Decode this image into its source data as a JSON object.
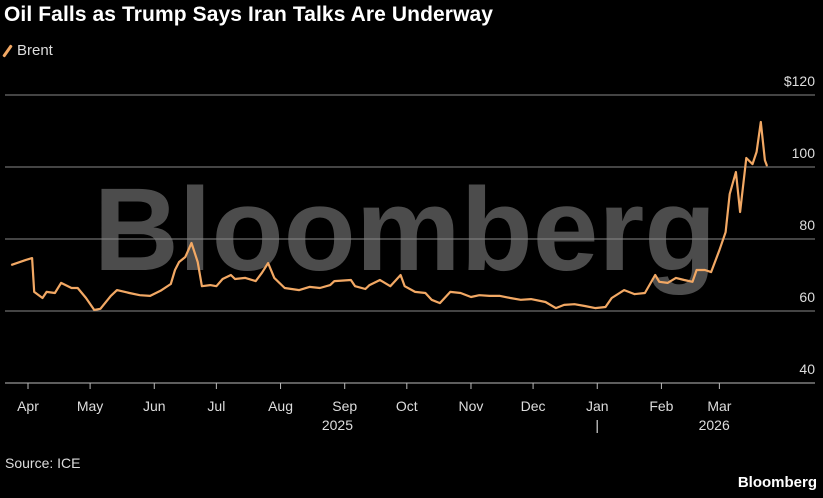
{
  "title": "Oil Falls as Trump Says Iran Talks Are Underway",
  "source": "Source: ICE",
  "brand": "Bloomberg",
  "watermark": "Bloomberg",
  "chart_data": {
    "type": "line",
    "title": "Oil Falls as Trump Says Iran Talks Are Underway",
    "xlabel": "",
    "ylabel": "",
    "x_unit": "days since 2025-04-01",
    "ylim": [
      40,
      120
    ],
    "y_ticks": [
      {
        "v": 120,
        "label": "$120"
      },
      {
        "v": 100,
        "label": "100"
      },
      {
        "v": 80,
        "label": "80"
      },
      {
        "v": 60,
        "label": "60"
      },
      {
        "v": 40,
        "label": "40"
      }
    ],
    "x_ticks": [
      {
        "d": 0,
        "label": "Apr"
      },
      {
        "d": 30,
        "label": "May"
      },
      {
        "d": 61,
        "label": "Jun"
      },
      {
        "d": 91,
        "label": "Jul"
      },
      {
        "d": 122,
        "label": "Aug"
      },
      {
        "d": 153,
        "label": "Sep"
      },
      {
        "d": 183,
        "label": "Oct"
      },
      {
        "d": 214,
        "label": "Nov"
      },
      {
        "d": 244,
        "label": "Dec"
      },
      {
        "d": 275,
        "label": "Jan"
      },
      {
        "d": 306,
        "label": "Feb"
      },
      {
        "d": 334,
        "label": "Mar"
      }
    ],
    "year_labels": [
      {
        "d": 135,
        "label": "2025"
      },
      {
        "d": 317,
        "label": "2026"
      }
    ],
    "year_divider": {
      "d": 275,
      "label": "|"
    },
    "grid": true,
    "legend_placement": "top-left",
    "series": [
      {
        "name": "Brent",
        "color": "#f2a864",
        "x": [
          -8,
          -1,
          2,
          3,
          7,
          9,
          13,
          16,
          21,
          24,
          28,
          32,
          35,
          40,
          43,
          49,
          54,
          59,
          64,
          69,
          71,
          73,
          76,
          79,
          82,
          84,
          88,
          91,
          94,
          98,
          100,
          105,
          110,
          113,
          116,
          119,
          124,
          131,
          136,
          141,
          146,
          148,
          156,
          158,
          163,
          165,
          170,
          175,
          180,
          182,
          187,
          192,
          195,
          199,
          204,
          209,
          214,
          218,
          223,
          228,
          233,
          238,
          243,
          250,
          255,
          259,
          264,
          269,
          274,
          279,
          282,
          288,
          293,
          298,
          303,
          305,
          309,
          313,
          317,
          321,
          323,
          327,
          330,
          334,
          337,
          339,
          342,
          344,
          347,
          350,
          352,
          354,
          356,
          357
        ],
        "values": [
          72.8,
          74.2,
          74.7,
          65.3,
          63.6,
          65.3,
          65.0,
          67.8,
          66.4,
          66.4,
          63.6,
          60.3,
          60.6,
          64.2,
          65.8,
          65.0,
          64.4,
          64.2,
          65.6,
          67.5,
          71.4,
          73.6,
          75.0,
          78.9,
          73.6,
          66.9,
          67.2,
          66.9,
          68.9,
          70.0,
          68.9,
          69.2,
          68.3,
          70.6,
          73.3,
          69.2,
          66.4,
          65.8,
          66.7,
          66.4,
          67.2,
          68.3,
          68.6,
          66.9,
          66.1,
          67.2,
          68.6,
          66.9,
          70.0,
          66.9,
          65.3,
          65.0,
          63.1,
          62.2,
          65.3,
          65.0,
          63.9,
          64.4,
          64.2,
          64.2,
          63.6,
          63.1,
          63.3,
          62.5,
          60.8,
          61.7,
          61.9,
          61.4,
          60.8,
          61.1,
          63.6,
          65.8,
          64.7,
          65.0,
          70.0,
          68.1,
          67.8,
          69.2,
          68.6,
          68.1,
          71.4,
          71.4,
          70.8,
          76.9,
          81.9,
          92.5,
          98.6,
          87.5,
          102.5,
          100.8,
          104.2,
          112.5,
          101.9,
          100.3
        ]
      }
    ]
  }
}
